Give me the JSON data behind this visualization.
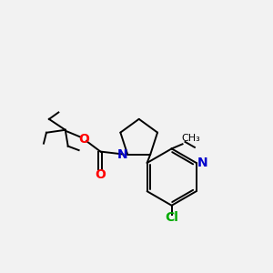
{
  "background_color": "#f2f2f2",
  "bond_color": "#000000",
  "atom_colors": {
    "N": "#0000cc",
    "O": "#ff0000",
    "Cl": "#00aa00",
    "C": "#000000"
  },
  "figsize": [
    3.0,
    3.0
  ],
  "dpi": 100,
  "bond_lw": 1.4,
  "double_sep": 0.07
}
